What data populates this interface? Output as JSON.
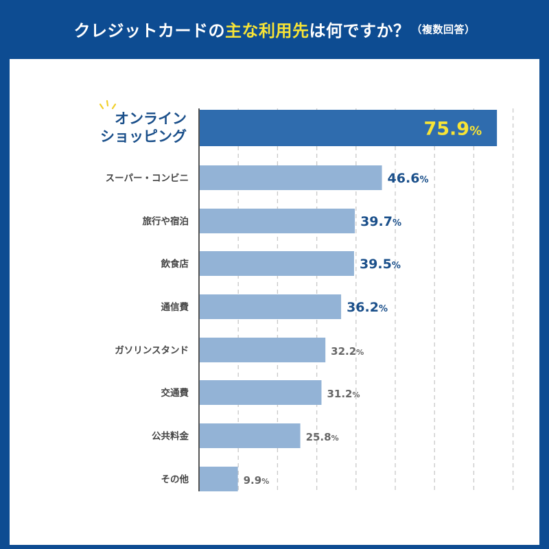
{
  "header": {
    "title_part1": "クレジットカードの",
    "title_highlight": "主な利用先",
    "title_part2": "は何ですか？",
    "title_note": "（複数回答）"
  },
  "colors": {
    "background": "#0d4c92",
    "panel": "#ffffff",
    "highlight_text": "#f7e436",
    "top_bar": "#2f6cae",
    "bar": "#93b3d6",
    "label_strong": "#1a4f8a",
    "label_muted": "#666666",
    "grid": "#c8c8c8"
  },
  "chart_data": {
    "type": "bar",
    "orientation": "horizontal",
    "title": "クレジットカードの主な利用先は何ですか？（複数回答）",
    "categories": [
      "オンライン\nショッピング",
      "スーパー・コンビニ",
      "旅行や宿泊",
      "飲食店",
      "通信費",
      "ガソリンスタンド",
      "交通費",
      "公共料金",
      "その他"
    ],
    "values": [
      75.9,
      46.6,
      39.7,
      39.5,
      36.2,
      32.2,
      31.2,
      25.8,
      9.9
    ],
    "value_labels": [
      "75.9",
      "46.6",
      "39.7",
      "39.5",
      "36.2",
      "32.2",
      "31.2",
      "25.8",
      "9.9"
    ],
    "unit": "%",
    "xlim": [
      0,
      80
    ],
    "grid": true,
    "xlabel": "",
    "ylabel": ""
  }
}
